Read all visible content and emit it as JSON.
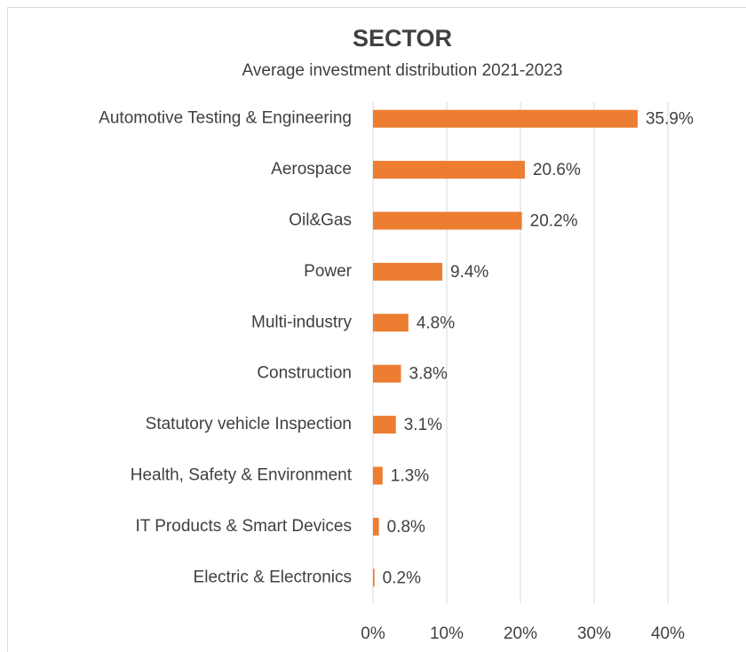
{
  "chart_data": {
    "type": "hbar",
    "title": "SECTOR",
    "subtitle": "Average investment distribution 2021-2023",
    "categories": [
      "Automotive Testing & Engineering",
      "Aerospace",
      "Oil&Gas",
      "Power",
      "Multi-industry",
      "Construction",
      "Statutory vehicle Inspection",
      "Health, Safety & Environment",
      "IT Products & Smart Devices",
      "Electric & Electronics"
    ],
    "values": [
      35.9,
      20.6,
      20.2,
      9.4,
      4.8,
      3.8,
      3.1,
      1.3,
      0.8,
      0.2
    ],
    "value_labels": [
      "35.9%",
      "20.6%",
      "20.2%",
      "9.4%",
      "4.8%",
      "3.8%",
      "3.1%",
      "1.3%",
      "0.8%",
      "0.2%"
    ],
    "color": "#ed7d31",
    "xlim": [
      0,
      40
    ],
    "xticks": [
      {
        "value": 0,
        "label": "0%"
      },
      {
        "value": 10,
        "label": "10%"
      },
      {
        "value": 20,
        "label": "20%"
      },
      {
        "value": 30,
        "label": "30%"
      },
      {
        "value": 40,
        "label": "40%"
      }
    ],
    "grid": true
  }
}
